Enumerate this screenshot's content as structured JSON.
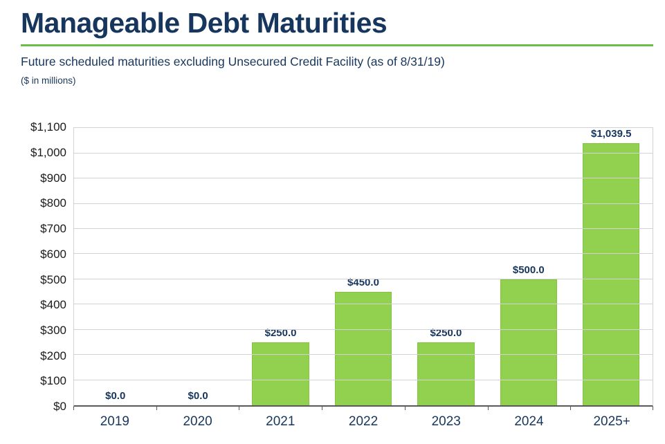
{
  "page": {
    "title": "Manageable Debt Maturities",
    "subtitle": "Future scheduled maturities excluding Unsecured Credit Facility (as of 8/31/19)",
    "units_note": "($ in millions)"
  },
  "colors": {
    "navy": "#17365d",
    "accent_green": "#6cbf45",
    "bar_fill": "#92d050",
    "bar_border": "#83c341",
    "gridline": "#d2d2d2",
    "axis_line": "#595959",
    "tick_text": "#1a1a1a"
  },
  "chart_data": {
    "type": "bar",
    "title": "Manageable Debt Maturities",
    "subtitle": "Future scheduled maturities excluding Unsecured Credit Facility (as of 8/31/19)",
    "units": "$ in millions",
    "categories": [
      "2019",
      "2020",
      "2021",
      "2022",
      "2023",
      "2024",
      "2025+"
    ],
    "values": [
      0.0,
      0.0,
      250.0,
      450.0,
      250.0,
      500.0,
      1039.5
    ],
    "value_labels": [
      "$0.0",
      "$0.0",
      "$250.0",
      "$450.0",
      "$250.0",
      "$500.0",
      "$1,039.5"
    ],
    "xlabel": "",
    "ylabel": "",
    "ylim": [
      0,
      1100
    ],
    "ytick_step": 100,
    "ytick_labels": [
      "$0",
      "$100",
      "$200",
      "$300",
      "$400",
      "$500",
      "$600",
      "$700",
      "$800",
      "$900",
      "$1,000",
      "$1,100"
    ],
    "grid": true,
    "legend": false,
    "bar_color": "#92d050"
  }
}
